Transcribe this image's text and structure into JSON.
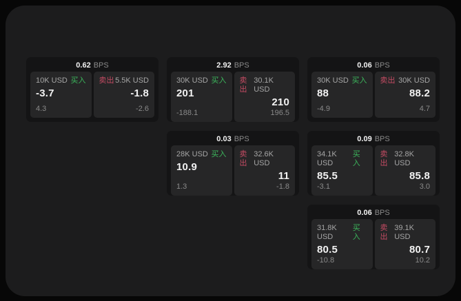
{
  "theme": {
    "buy_color": "#3cb65c",
    "sell_color": "#c44b63",
    "surface_color": "#1c1c1d",
    "card_color": "#141415",
    "panel_color": "#262627"
  },
  "labels": {
    "bps_unit": "BPS",
    "buy": "买入",
    "sell": "卖出"
  },
  "cards": [
    {
      "bps_value": "0.62",
      "buy": {
        "amount": "10K USD",
        "label": "买入",
        "price": "-3.7",
        "change": "4.3"
      },
      "sell": {
        "label": "卖出",
        "amount": "5.5K USD",
        "price": "-1.8",
        "change": "-2.6"
      }
    },
    {
      "bps_value": "2.92",
      "buy": {
        "amount": "30K USD",
        "label": "买入",
        "price": "201",
        "change": "-188.1"
      },
      "sell": {
        "label": "卖出",
        "amount": "30.1K USD",
        "price": "210",
        "change": "196.5"
      }
    },
    {
      "bps_value": "0.06",
      "buy": {
        "amount": "30K USD",
        "label": "买入",
        "price": "88",
        "change": "-4.9"
      },
      "sell": {
        "label": "卖出",
        "amount": "30K USD",
        "price": "88.2",
        "change": "4.7"
      }
    },
    {
      "bps_value": "0.03",
      "buy": {
        "amount": "28K USD",
        "label": "买入",
        "price": "10.9",
        "change": "1.3"
      },
      "sell": {
        "label": "卖出",
        "amount": "32.6K USD",
        "price": "11",
        "change": "-1.8"
      }
    },
    {
      "bps_value": "0.09",
      "buy": {
        "amount": "34.1K USD",
        "label": "买入",
        "price": "85.5",
        "change": "-3.1"
      },
      "sell": {
        "label": "卖出",
        "amount": "32.8K USD",
        "price": "85.8",
        "change": "3.0"
      }
    },
    {
      "bps_value": "0.06",
      "buy": {
        "amount": "31.8K USD",
        "label": "买入",
        "price": "80.5",
        "change": "-10.8"
      },
      "sell": {
        "label": "卖出",
        "amount": "39.1K USD",
        "price": "80.7",
        "change": "10.2"
      }
    }
  ]
}
